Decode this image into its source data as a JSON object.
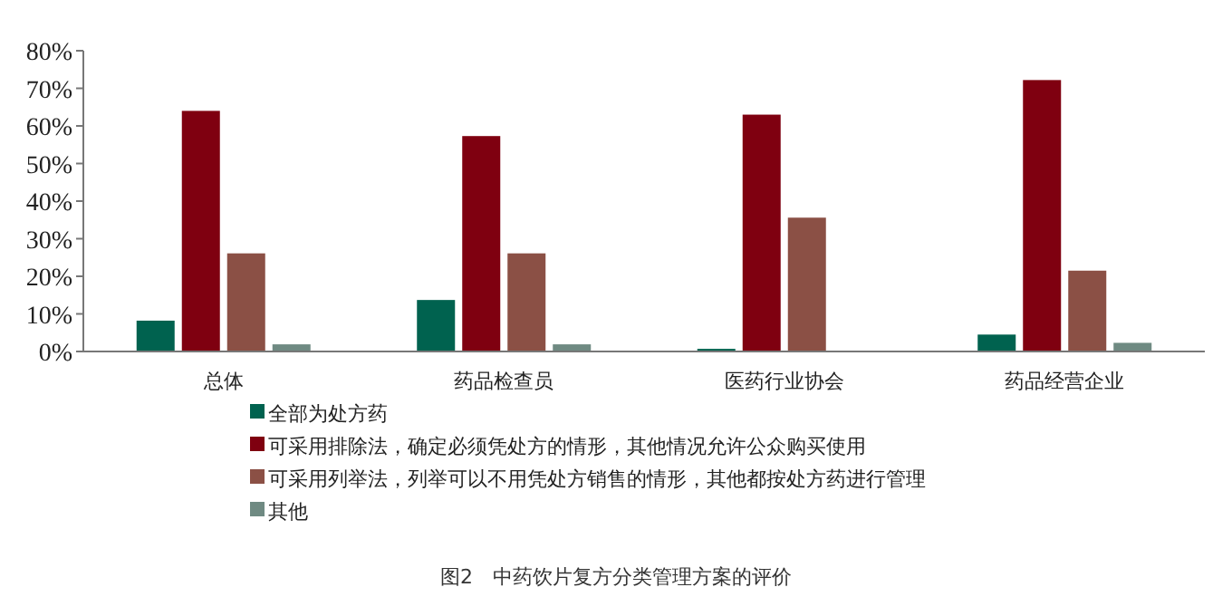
{
  "chart_data": {
    "type": "bar",
    "categories": [
      "总体",
      "药品检查员",
      "医药行业协会",
      "药品经营企业"
    ],
    "series": [
      {
        "name": "全部为处方药",
        "color": "#00624f",
        "values": [
          8.2,
          13.7,
          0.7,
          4.5
        ]
      },
      {
        "name": "可采用排除法，确定必须凭处方的情形，其他情况允许公众购买使用",
        "color": "#7f0010",
        "values": [
          64,
          57.3,
          63,
          72.2
        ]
      },
      {
        "name": "可采用列举法，列举可以不用凭处方销售的情形，其他都按处方药进行管理",
        "color": "#8b5045",
        "values": [
          26.1,
          26.1,
          35.6,
          21.5
        ]
      },
      {
        "name": "其他",
        "color": "#6f8a82",
        "values": [
          1.9,
          1.9,
          0,
          2.3
        ]
      }
    ],
    "ylim": [
      0,
      80
    ],
    "yticks": [
      {
        "value": 0,
        "label": "0%"
      },
      {
        "value": 10,
        "label": "10%"
      },
      {
        "value": 20,
        "label": "20%"
      },
      {
        "value": 30,
        "label": "30%"
      },
      {
        "value": 40,
        "label": "40%"
      },
      {
        "value": 50,
        "label": "50%"
      },
      {
        "value": 60,
        "label": "60%"
      },
      {
        "value": 70,
        "label": "70%"
      },
      {
        "value": 80,
        "label": "80%"
      }
    ],
    "grid": false,
    "legend": "bottom left",
    "annotations": [
      "图2　中药饮片复方分类管理方案的评价"
    ]
  }
}
